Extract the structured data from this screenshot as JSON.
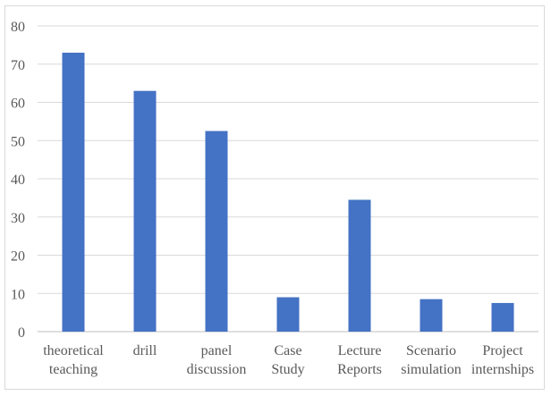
{
  "chart_data": {
    "type": "bar",
    "title": "",
    "xlabel": "",
    "ylabel": "",
    "categories": [
      [
        "theoretical",
        "teaching"
      ],
      [
        "drill"
      ],
      [
        "panel",
        "discussion"
      ],
      [
        "Case",
        "Study"
      ],
      [
        "Lecture",
        "Reports"
      ],
      [
        "Scenario",
        "simulation"
      ],
      [
        "Project",
        "internships"
      ]
    ],
    "values": [
      73,
      63,
      52.5,
      9,
      34.5,
      8.5,
      7.5
    ],
    "ylim": [
      0,
      80
    ],
    "yticks": [
      "0",
      "10",
      "20",
      "30",
      "40",
      "50",
      "60",
      "70",
      "80"
    ],
    "grid": true,
    "legend": "none",
    "bar_color": "#4472c4",
    "grid_color": "#d9d9d9",
    "axis_color": "#bfbfbf"
  }
}
